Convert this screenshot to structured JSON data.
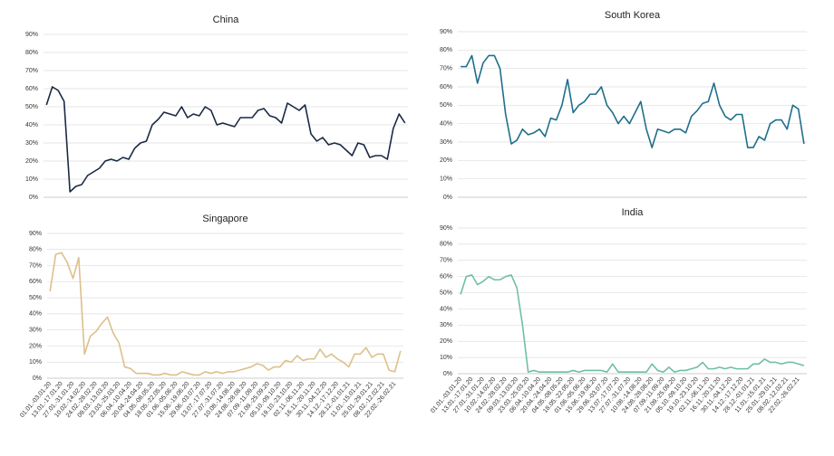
{
  "chart_data": [
    {
      "type": "line",
      "title": "China",
      "color": "#1a2a44",
      "ylim": [
        0,
        90
      ],
      "yticks": [
        {
          "value": 0,
          "label": "0%"
        },
        {
          "value": 10,
          "label": "10%"
        },
        {
          "value": 20,
          "label": "20%"
        },
        {
          "value": 30,
          "label": "30%"
        },
        {
          "value": 40,
          "label": "40%"
        },
        {
          "value": 50,
          "label": "50%"
        },
        {
          "value": 60,
          "label": "60%"
        },
        {
          "value": 70,
          "label": "70%"
        },
        {
          "value": 80,
          "label": "80%"
        },
        {
          "value": 90,
          "label": "90%"
        }
      ],
      "values": [
        51,
        61,
        59,
        53,
        3,
        6,
        7,
        12,
        14,
        16,
        20,
        21,
        20,
        22,
        21,
        27,
        30,
        31,
        40,
        43,
        47,
        46,
        45,
        50,
        44,
        46,
        45,
        50,
        48,
        40,
        41,
        40,
        39,
        44,
        44,
        44,
        48,
        49,
        45,
        44,
        41,
        52,
        50,
        48,
        51,
        35,
        31,
        33,
        29,
        30,
        29,
        26,
        23,
        30,
        29,
        22,
        23,
        23,
        21,
        38,
        46,
        41
      ]
    },
    {
      "type": "line",
      "title": "South Korea",
      "color": "#1f6f8b",
      "ylim": [
        0,
        90
      ],
      "yticks": [
        {
          "value": 0,
          "label": "0%"
        },
        {
          "value": 10,
          "label": "10%"
        },
        {
          "value": 20,
          "label": "20%"
        },
        {
          "value": 30,
          "label": "30%"
        },
        {
          "value": 40,
          "label": "40%"
        },
        {
          "value": 50,
          "label": "50%"
        },
        {
          "value": 60,
          "label": "60%"
        },
        {
          "value": 70,
          "label": "70%"
        },
        {
          "value": 80,
          "label": "80%"
        },
        {
          "value": 90,
          "label": "90%"
        }
      ],
      "values": [
        71,
        71,
        77,
        62,
        73,
        77,
        77,
        70,
        45,
        29,
        31,
        37,
        34,
        35,
        37,
        33,
        43,
        42,
        50,
        64,
        46,
        50,
        52,
        56,
        56,
        60,
        50,
        46,
        40,
        44,
        40,
        46,
        52,
        37,
        27,
        37,
        36,
        35,
        37,
        37,
        35,
        44,
        47,
        51,
        52,
        62,
        50,
        44,
        42,
        45,
        45,
        27,
        27,
        33,
        31,
        40,
        42,
        42,
        37,
        50,
        48,
        29
      ]
    },
    {
      "type": "line",
      "title": "Singapore",
      "color": "#dcc08a",
      "ylim": [
        0,
        90
      ],
      "yticks": [
        {
          "value": 0,
          "label": "0%"
        },
        {
          "value": 10,
          "label": "10%"
        },
        {
          "value": 20,
          "label": "20%"
        },
        {
          "value": 30,
          "label": "30%"
        },
        {
          "value": 40,
          "label": "40%"
        },
        {
          "value": 50,
          "label": "50%"
        },
        {
          "value": 60,
          "label": "60%"
        },
        {
          "value": 70,
          "label": "70%"
        },
        {
          "value": 80,
          "label": "80%"
        },
        {
          "value": 90,
          "label": "90%"
        }
      ],
      "categories": [
        "01.01.-03.01.20",
        null,
        "13.01.-17.01.20",
        null,
        "27.01.-31.01.20",
        null,
        "10.02.-14.02.20",
        null,
        "24.02.-28.02.20",
        null,
        "09.03.-13.03.20",
        null,
        "23.03.-25.03.20",
        null,
        "06.04.-10.04.20",
        null,
        "20.04.-24.04.20",
        null,
        "04.05.-08.05.20",
        null,
        "18.05.-22.05.20",
        null,
        "01.06.-05.06.20",
        null,
        "15.06.-19.06.20",
        null,
        "29.06.-03.07.20",
        null,
        "13.07.-17.07.20",
        null,
        "27.07.-31.07.20",
        null,
        "10.08.-14.08.20",
        null,
        "24.08.-28.08.20",
        null,
        "07.09.-11.09.20",
        null,
        "21.09.-25.09.20",
        null,
        "05.10.-09.10.20",
        null,
        "19.10.-23.10.20",
        null,
        "02.11.-06.11.20",
        null,
        "16.11.-20.11.20",
        null,
        "30.11.-04.12.20",
        null,
        "14.12.-17.12.20",
        null,
        "28.12.-01.01.21",
        null,
        "11.01.-15.01.21",
        null,
        "25.01.-29.01.21",
        null,
        "08.02.-12.02.21",
        null,
        "22.02.-26.02.21",
        null
      ],
      "values": [
        54,
        77,
        78,
        72,
        62,
        75,
        15,
        26,
        29,
        34,
        38,
        28,
        22,
        7,
        6,
        3,
        3,
        3,
        2,
        2,
        3,
        2,
        2,
        4,
        3,
        2,
        2,
        4,
        3,
        4,
        3,
        4,
        4,
        5,
        6,
        7,
        9,
        8,
        5,
        7,
        7,
        11,
        10,
        14,
        11,
        12,
        12,
        18,
        13,
        15,
        12,
        10,
        7,
        15,
        15,
        19,
        13,
        15,
        15,
        5,
        4,
        17
      ]
    },
    {
      "type": "line",
      "title": "India",
      "color": "#6fbfa8",
      "ylim": [
        0,
        90
      ],
      "yticks": [
        {
          "value": 0,
          "label": "0%"
        },
        {
          "value": 10,
          "label": "10%"
        },
        {
          "value": 20,
          "label": "20%"
        },
        {
          "value": 30,
          "label": "30%"
        },
        {
          "value": 40,
          "label": "40%"
        },
        {
          "value": 50,
          "label": "50%"
        },
        {
          "value": 60,
          "label": "60%"
        },
        {
          "value": 70,
          "label": "70%"
        },
        {
          "value": 80,
          "label": "80%"
        },
        {
          "value": 90,
          "label": "90%"
        }
      ],
      "categories": [
        "01.01.-03.01.20",
        null,
        "13.01.-17.01.20",
        null,
        "27.01.-31.01.20",
        null,
        "10.02.-14.02.20",
        null,
        "24.02.-28.02.20",
        null,
        "09.03.-13.03.20",
        null,
        "23.03.-25.03.20",
        null,
        "06.04.-10.04.20",
        null,
        "20.04.-24.04.20",
        null,
        "04.05.-08.05.20",
        null,
        "18.05.-22.05.20",
        null,
        "01.06.-05.06.20",
        null,
        "15.06.-19.06.20",
        null,
        "29.06.-03.07.20",
        null,
        "13.07.-17.07.20",
        null,
        "27.07.-31.07.20",
        null,
        "10.08.-14.08.20",
        null,
        "24.08.-28.08.20",
        null,
        "07.09.-11.09.20",
        null,
        "21.09.-25.09.20",
        null,
        "05.10.-09.10.20",
        null,
        "19.10.-23.10.20",
        null,
        "02.11.-06.11.20",
        null,
        "16.11.-20.11.20",
        null,
        "30.11.-04.12.20",
        null,
        "14.12.-17.12.20",
        null,
        "28.12.-01.01.21",
        null,
        "11.01.-15.01.21",
        null,
        "25.01.-29.01.21",
        null,
        "08.02.-12.02.21",
        null,
        "22.02.-26.02.21",
        null
      ],
      "values": [
        49,
        60,
        61,
        55,
        57,
        60,
        58,
        58,
        60,
        61,
        53,
        30,
        1,
        2,
        1,
        1,
        1,
        1,
        1,
        1,
        2,
        1,
        2,
        2,
        2,
        2,
        1,
        6,
        1,
        1,
        1,
        1,
        1,
        1,
        6,
        2,
        1,
        4,
        1,
        2,
        2,
        3,
        4,
        7,
        3,
        3,
        4,
        3,
        4,
        3,
        3,
        3,
        6,
        6,
        9,
        7,
        7,
        6,
        7,
        7,
        6,
        5
      ]
    }
  ]
}
